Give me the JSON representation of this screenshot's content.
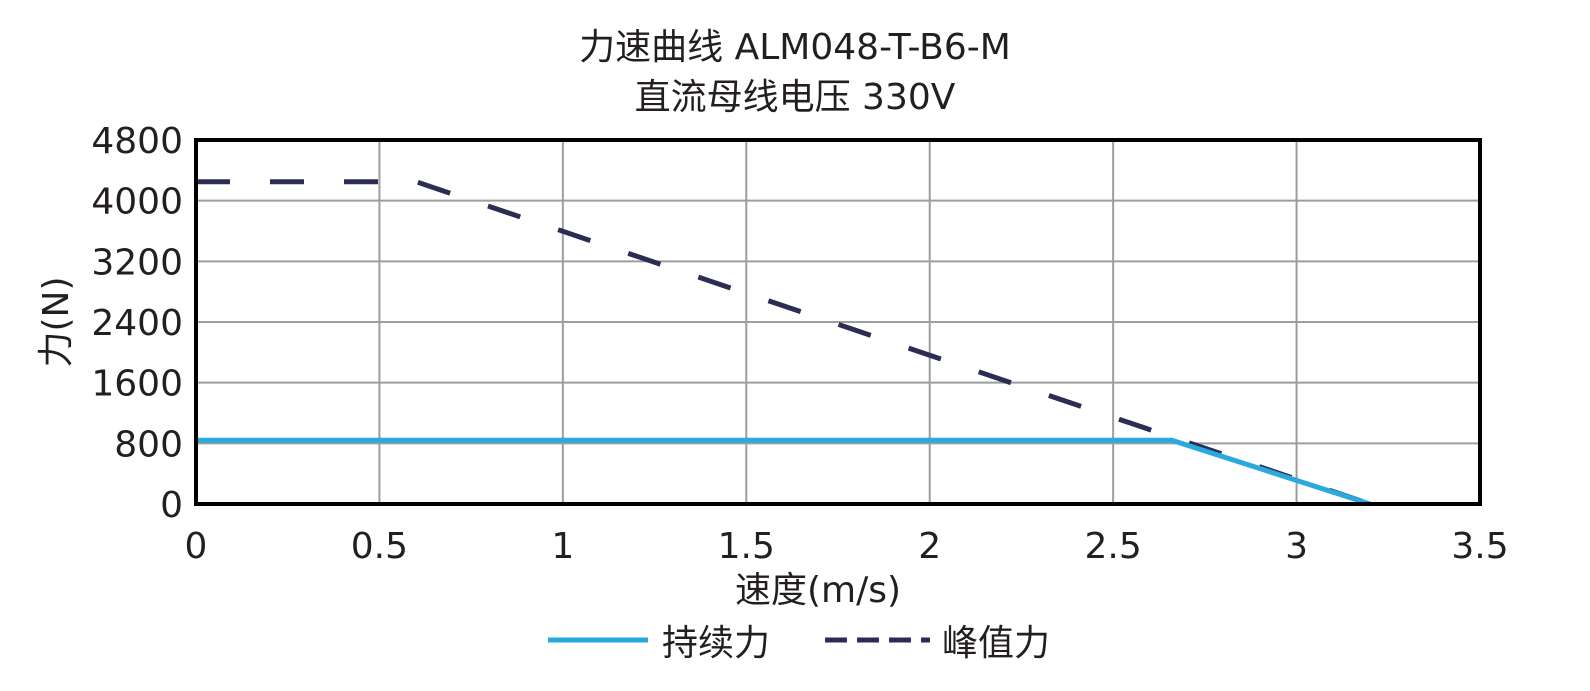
{
  "chart_data": {
    "type": "line",
    "title": "力速曲线 ALM048-T-B6-M",
    "subtitle": "直流母线电压 330V",
    "xlabel": "速度(m/s)",
    "ylabel": "力(N)",
    "xlim": [
      0,
      3.5
    ],
    "ylim": [
      0,
      4800
    ],
    "xticks": [
      0,
      0.5,
      1,
      1.5,
      2,
      2.5,
      3,
      3.5
    ],
    "xtick_labels": [
      "0",
      "0.5",
      "1",
      "1.5",
      "2",
      "2.5",
      "3",
      "3.5"
    ],
    "yticks": [
      0,
      800,
      1600,
      2400,
      3200,
      4000,
      4800
    ],
    "ytick_labels": [
      "0",
      "800",
      "1600",
      "2400",
      "3200",
      "4000",
      "4800"
    ],
    "grid": true,
    "legend_position": "bottom",
    "series": [
      {
        "name": "持续力",
        "color": "#29a9e0",
        "style": "solid",
        "x": [
          0,
          2.66,
          3.2
        ],
        "y": [
          840,
          840,
          0
        ]
      },
      {
        "name": "峰值力",
        "color": "#2b2d52",
        "style": "dashed",
        "x": [
          0,
          0.6,
          3.2
        ],
        "y": [
          4250,
          4250,
          0
        ]
      }
    ]
  }
}
